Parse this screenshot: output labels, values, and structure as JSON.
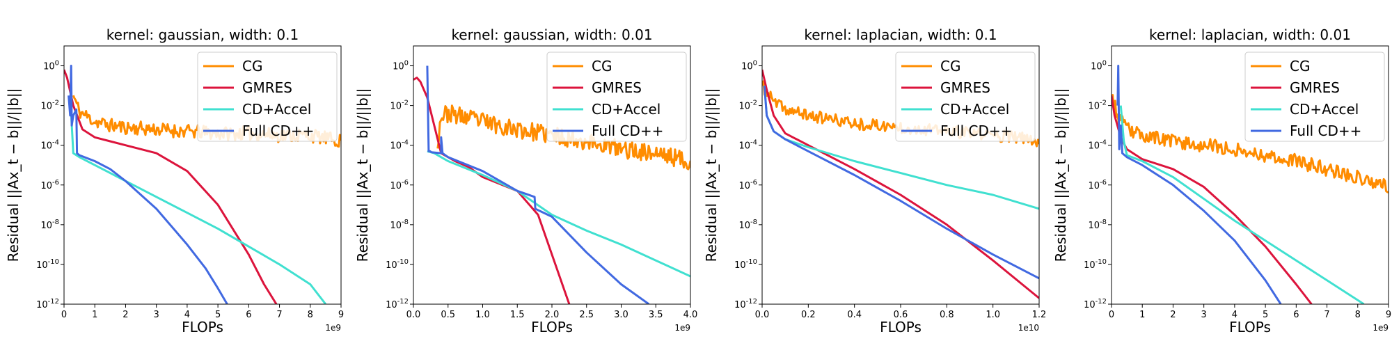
{
  "colors": {
    "CG": "#ff8c00",
    "GMRES": "#dc143c",
    "CD+Accel": "#40e0d0",
    "Full CD++": "#4169e1"
  },
  "chart_data": [
    {
      "type": "line",
      "title": "kernel: gaussian, width: 0.1",
      "xlabel": "FLOPs",
      "ylabel": "Residual ||Ax_t − b||/||b||",
      "x_offset_label": "1e9",
      "xlim": [
        0,
        9
      ],
      "ylim_log10": [
        -12,
        1
      ],
      "xticks": [
        "0",
        "1",
        "2",
        "3",
        "4",
        "5",
        "6",
        "7",
        "8",
        "9"
      ],
      "yticks": [
        "-12",
        "-10",
        "-8",
        "-6",
        "-4",
        "-2",
        "0"
      ],
      "legend": [
        "CG",
        "GMRES",
        "CD+Accel",
        "Full CD++"
      ],
      "legend_position": "top-right",
      "series": [
        {
          "name": "CG",
          "x": [
            0.3,
            0.5,
            1,
            1.5,
            2,
            3,
            4,
            5,
            6,
            7,
            8,
            9
          ],
          "log10_y": [
            -1.5,
            -2.3,
            -2.8,
            -3,
            -3.1,
            -3.2,
            -3.3,
            -3.4,
            -3.4,
            -3.5,
            -3.5,
            -3.8
          ],
          "noise": 0.35,
          "seed": 11
        },
        {
          "name": "GMRES",
          "x": [
            0,
            0.1,
            0.3,
            0.6,
            1,
            1.5,
            2,
            3,
            4,
            5,
            6,
            6.5,
            6.9
          ],
          "log10_y": [
            -0.2,
            -0.6,
            -2,
            -3.2,
            -3.6,
            -3.8,
            -4,
            -4.4,
            -5.3,
            -7,
            -9.5,
            -11,
            -12
          ],
          "noise": 0,
          "seed": 0
        },
        {
          "name": "CD+Accel",
          "x": [
            0.2,
            0.3,
            0.5,
            1,
            1.5,
            2,
            3,
            4,
            5,
            6,
            7,
            8,
            8.5
          ],
          "log10_y": [
            -1.5,
            -4.4,
            -4.6,
            -5,
            -5.4,
            -5.8,
            -6.6,
            -7.4,
            -8.2,
            -9.1,
            -10,
            -11,
            -12
          ],
          "noise": 0,
          "seed": 0
        },
        {
          "name": "Full CD++",
          "x": [
            0.15,
            0.2,
            0.23,
            0.25,
            0.3,
            0.4,
            0.42,
            0.5,
            1,
            1.5,
            2,
            3,
            4,
            4.6,
            5,
            5.3
          ],
          "log10_y": [
            -1.5,
            -2.5,
            0,
            -3,
            -2.5,
            -2.2,
            -4.4,
            -4.5,
            -4.8,
            -5.2,
            -5.8,
            -7.2,
            -9,
            -10.2,
            -11.2,
            -12
          ],
          "noise": 0,
          "seed": 0
        }
      ]
    },
    {
      "type": "line",
      "title": "kernel: gaussian, width: 0.01",
      "xlabel": "FLOPs",
      "ylabel": "Residual ||Ax_t − b||/||b||",
      "x_offset_label": "1e9",
      "xlim": [
        0,
        4
      ],
      "ylim_log10": [
        -12,
        1
      ],
      "xticks": [
        "0.0",
        "0.5",
        "1.0",
        "1.5",
        "2.0",
        "2.5",
        "3.0",
        "3.5",
        "4.0"
      ],
      "yticks": [
        "-12",
        "-10",
        "-8",
        "-6",
        "-4",
        "-2",
        "0"
      ],
      "legend": [
        "CG",
        "GMRES",
        "CD+Accel",
        "Full CD++"
      ],
      "legend_position": "top-right",
      "series": [
        {
          "name": "CG",
          "x": [
            0.35,
            0.4,
            0.5,
            1,
            1.5,
            2,
            2.5,
            3,
            3.5,
            4
          ],
          "log10_y": [
            -3.8,
            -2.5,
            -2.4,
            -2.8,
            -3.2,
            -3.5,
            -3.8,
            -4.2,
            -4.4,
            -4.8
          ],
          "noise": 0.45,
          "seed": 23
        },
        {
          "name": "GMRES",
          "x": [
            0,
            0.05,
            0.1,
            0.2,
            0.3,
            0.4,
            0.6,
            0.8,
            1,
            1.5,
            1.8,
            2,
            2.2,
            2.25
          ],
          "log10_y": [
            -0.7,
            -0.6,
            -0.8,
            -1.6,
            -3,
            -4.4,
            -4.8,
            -5.1,
            -5.6,
            -6.3,
            -7.5,
            -9.5,
            -11.5,
            -12
          ],
          "noise": 0,
          "seed": 0
        },
        {
          "name": "CD+Accel",
          "x": [
            0.2,
            0.3,
            0.4,
            0.5,
            1,
            1.5,
            2,
            2.5,
            3,
            3.5,
            4
          ],
          "log10_y": [
            -4.3,
            -4.4,
            -4.6,
            -4.8,
            -5.5,
            -6.3,
            -7.5,
            -8.3,
            -9,
            -9.8,
            -10.6
          ],
          "noise": 0,
          "seed": 0
        },
        {
          "name": "Full CD++",
          "x": [
            0.2,
            0.22,
            0.24,
            0.26,
            0.4,
            0.4,
            0.42,
            0.5,
            1,
            1.5,
            1.75,
            1.76,
            2,
            2.5,
            3,
            3.4
          ],
          "log10_y": [
            0,
            -4.3,
            -4.3,
            -4.35,
            -4.4,
            -3.6,
            -4.4,
            -4.6,
            -5.3,
            -6.3,
            -6.6,
            -7.2,
            -7.6,
            -9.4,
            -11,
            -12
          ],
          "noise": 0,
          "seed": 0
        }
      ]
    },
    {
      "type": "line",
      "title": "kernel: laplacian, width: 0.1",
      "xlabel": "FLOPs",
      "ylabel": "Residual ||Ax_t − b||/||b||",
      "x_offset_label": "1e10",
      "xlim": [
        0,
        1.2
      ],
      "ylim_log10": [
        -12,
        1
      ],
      "xticks": [
        "0.0",
        "0.2",
        "0.4",
        "0.6",
        "0.8",
        "1.0",
        "1.2"
      ],
      "yticks": [
        "-12",
        "-10",
        "-8",
        "-6",
        "-4",
        "-2",
        "0"
      ],
      "legend": [
        "CG",
        "GMRES",
        "CD+Accel",
        "Full CD++"
      ],
      "legend_position": "top-right",
      "series": [
        {
          "name": "CG",
          "x": [
            0,
            0.05,
            0.1,
            0.2,
            0.3,
            0.4,
            0.5,
            0.6,
            0.7,
            0.8,
            0.9,
            1,
            1.1,
            1.2
          ],
          "log10_y": [
            -1,
            -1.8,
            -2.2,
            -2.5,
            -2.7,
            -2.9,
            -3,
            -3.1,
            -3.2,
            -3.3,
            -3.4,
            -3.5,
            -3.6,
            -3.8
          ],
          "noise": 0.3,
          "seed": 37
        },
        {
          "name": "GMRES",
          "x": [
            0,
            0.02,
            0.05,
            0.1,
            0.2,
            0.4,
            0.6,
            0.8,
            1,
            1.2
          ],
          "log10_y": [
            -0.2,
            -1.2,
            -2.5,
            -3.4,
            -4,
            -5.2,
            -6.5,
            -8,
            -9.8,
            -11.7
          ],
          "noise": 0,
          "seed": 0
        },
        {
          "name": "CD+Accel",
          "x": [
            0.01,
            0.02,
            0.05,
            0.1,
            0.2,
            0.4,
            0.6,
            0.8,
            1,
            1.2
          ],
          "log10_y": [
            -1,
            -2.5,
            -3.3,
            -3.7,
            -4.1,
            -4.8,
            -5.4,
            -6,
            -6.5,
            -7.2
          ],
          "noise": 0,
          "seed": 0
        },
        {
          "name": "Full CD++",
          "x": [
            0.01,
            0.02,
            0.05,
            0.1,
            0.2,
            0.4,
            0.6,
            0.8,
            1,
            1.2
          ],
          "log10_y": [
            -1,
            -2.5,
            -3.3,
            -3.7,
            -4.3,
            -5.5,
            -6.8,
            -8.2,
            -9.5,
            -10.7
          ],
          "noise": 0,
          "seed": 0
        }
      ]
    },
    {
      "type": "line",
      "title": "kernel: laplacian, width: 0.01",
      "xlabel": "FLOPs",
      "ylabel": "Residual ||Ax_t − b||/||b||",
      "x_offset_label": "1e9",
      "xlim": [
        0,
        9
      ],
      "ylim_log10": [
        -12,
        1
      ],
      "xticks": [
        "0",
        "1",
        "2",
        "3",
        "4",
        "5",
        "6",
        "7",
        "8",
        "9"
      ],
      "yticks": [
        "-12",
        "-10",
        "-8",
        "-6",
        "-4",
        "-2",
        "0"
      ],
      "legend": [
        "CG",
        "GMRES",
        "CD+Accel",
        "Full CD++"
      ],
      "legend_position": "top-right",
      "series": [
        {
          "name": "CG",
          "x": [
            0,
            0.2,
            0.5,
            1,
            2,
            3,
            4,
            5,
            6,
            7,
            8,
            9
          ],
          "log10_y": [
            -1.5,
            -2.5,
            -3.2,
            -3.5,
            -3.8,
            -4,
            -4.2,
            -4.5,
            -4.8,
            -5.2,
            -5.6,
            -6.1
          ],
          "noise": 0.35,
          "seed": 53
        },
        {
          "name": "GMRES",
          "x": [
            0,
            0.1,
            0.3,
            0.5,
            1,
            2,
            3,
            4,
            5,
            6,
            6.5
          ],
          "log10_y": [
            -1.5,
            -2.5,
            -3.6,
            -4.2,
            -4.7,
            -5.2,
            -6.1,
            -7.5,
            -9.1,
            -11,
            -12
          ],
          "noise": 0,
          "seed": 0
        },
        {
          "name": "CD+Accel",
          "x": [
            0.3,
            0.4,
            0.5,
            1,
            2,
            3,
            4,
            5,
            6,
            7,
            8,
            8.2
          ],
          "log10_y": [
            -2,
            -3.8,
            -4.5,
            -4.8,
            -5.6,
            -6.7,
            -7.8,
            -8.8,
            -9.8,
            -10.8,
            -11.8,
            -12
          ],
          "noise": 0,
          "seed": 0
        },
        {
          "name": "Full CD++",
          "x": [
            0.2,
            0.22,
            0.25,
            0.3,
            0.35,
            0.5,
            1,
            2,
            3,
            4,
            5,
            5.5
          ],
          "log10_y": [
            -2,
            0,
            -4.2,
            -3,
            -4.4,
            -4.6,
            -5,
            -6,
            -7.3,
            -8.8,
            -10.8,
            -12
          ],
          "noise": 0,
          "seed": 0
        }
      ]
    }
  ]
}
